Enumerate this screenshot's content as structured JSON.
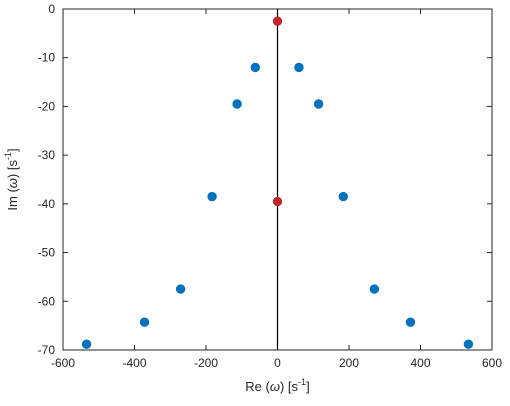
{
  "chart_data": {
    "type": "scatter",
    "xlabel": {
      "prefix": "Re (",
      "symbol": "ω",
      "mid": ") [s",
      "sup": "-1",
      "suffix": "]"
    },
    "ylabel": {
      "prefix": "Im (",
      "symbol": "ω",
      "mid": ") [s",
      "sup": "-1",
      "suffix": "]"
    },
    "xlim": [
      -600,
      600
    ],
    "ylim": [
      -70,
      0
    ],
    "xticks": [
      -600,
      -400,
      -200,
      0,
      200,
      400,
      600
    ],
    "yticks": [
      0,
      -10,
      -20,
      -30,
      -40,
      -50,
      -60,
      -70
    ],
    "grid": false,
    "vertical_line_x": 0,
    "series": [
      {
        "color": "#0072bd",
        "points": [
          {
            "x": -62,
            "y": -12
          },
          {
            "x": 60,
            "y": -12
          },
          {
            "x": -113,
            "y": -19.5
          },
          {
            "x": 115,
            "y": -19.5
          },
          {
            "x": -183,
            "y": -38.5
          },
          {
            "x": 184,
            "y": -38.5
          },
          {
            "x": -271,
            "y": -57.5
          },
          {
            "x": 271,
            "y": -57.5
          },
          {
            "x": -372,
            "y": -64.3
          },
          {
            "x": 372,
            "y": -64.3
          },
          {
            "x": -534,
            "y": -68.8
          },
          {
            "x": 534,
            "y": -68.8
          }
        ]
      },
      {
        "color": "#c1272d",
        "points": [
          {
            "x": 0,
            "y": -2.5
          },
          {
            "x": 0,
            "y": -39.5
          }
        ]
      }
    ]
  }
}
